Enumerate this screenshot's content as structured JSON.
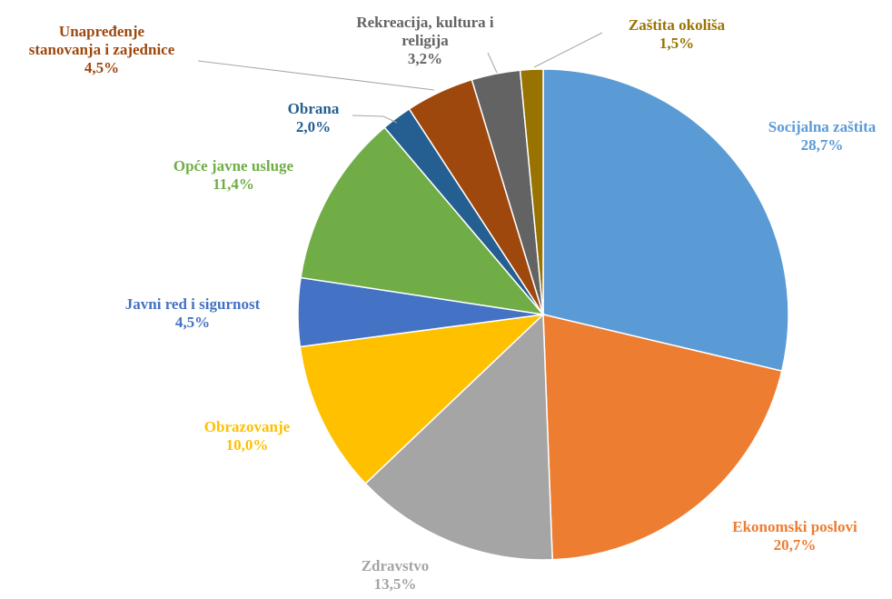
{
  "chart_data": {
    "type": "pie",
    "categories": [
      "Socijalna zaštita",
      "Ekonomski poslovi",
      "Zdravstvo",
      "Obrazovanje",
      "Javni red i sigurnost",
      "Opće javne usluge",
      "Obrana",
      "Unapređenje stanovanja i zajednice",
      "Rekreacija, kultura i religija",
      "Zaštita okoliša"
    ],
    "values": [
      28.7,
      20.7,
      13.5,
      10.0,
      4.5,
      11.4,
      2.0,
      4.5,
      3.2,
      1.5
    ],
    "value_labels": [
      "28,7%",
      "20,7%",
      "13,5%",
      "10,0%",
      "4,5%",
      "11,4%",
      "2,0%",
      "4,5%",
      "3,2%",
      "1,5%"
    ],
    "colors": [
      "#5b9bd5",
      "#ed7d31",
      "#a5a5a5",
      "#ffc000",
      "#4472c4",
      "#70ad47",
      "#255e91",
      "#9e480e",
      "#636363",
      "#997300"
    ]
  }
}
